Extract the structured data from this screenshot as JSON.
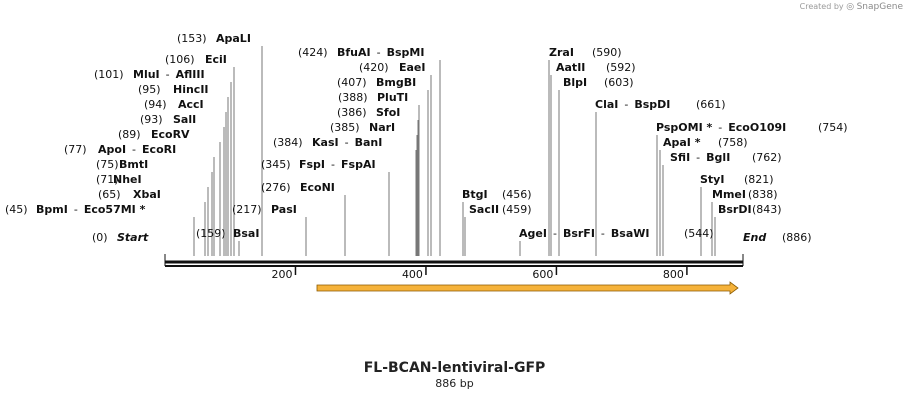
{
  "credit": {
    "prefix": "Created by",
    "brand": "SnapGene"
  },
  "map": {
    "name": "FL-BCAN-lentiviral-GFP",
    "length_label": "886 bp",
    "length": 886,
    "start_label": "Start",
    "end_label": "End",
    "start_pos": "(0)",
    "end_pos": "(886)",
    "ruler_ticks": [
      {
        "value": 200,
        "label": "200"
      },
      {
        "value": 400,
        "label": "400"
      },
      {
        "value": 600,
        "label": "600"
      },
      {
        "value": 800,
        "label": "800"
      }
    ],
    "feature": {
      "name": "GFP-arrow",
      "start": 233,
      "end": 886,
      "direction": "forward",
      "color": "#f5b23a"
    },
    "enzymes": [
      {
        "pos": "(45)",
        "name": "BpmI",
        "name2": "Eco57MI *",
        "site": 45
      },
      {
        "pos": "(65)",
        "name": "XbaI",
        "site": 65
      },
      {
        "pos": "(71)",
        "name": "NheI",
        "site": 71
      },
      {
        "pos": "(75)",
        "name": "BmtI",
        "site": 75
      },
      {
        "pos": "(77)",
        "name": "ApoI",
        "name2": "EcoRI",
        "site": 77
      },
      {
        "pos": "(89)",
        "name": "EcoRV",
        "site": 89
      },
      {
        "pos": "(93)",
        "name": "SalI",
        "site": 93
      },
      {
        "pos": "(94)",
        "name": "AccI",
        "site": 94
      },
      {
        "pos": "(95)",
        "name": "HincII",
        "site": 95
      },
      {
        "pos": "(101)",
        "name": "MluI",
        "name2": "AflIII",
        "site": 101
      },
      {
        "pos": "(106)",
        "name": "EciI",
        "site": 106
      },
      {
        "pos": "(153)",
        "name": "ApaLI",
        "site": 153
      },
      {
        "pos": "(159)",
        "name": "BsaI",
        "site": 159
      },
      {
        "pos": "(217)",
        "name": "PasI",
        "site": 217
      },
      {
        "pos": "(276)",
        "name": "EcoNI",
        "site": 276
      },
      {
        "pos": "(345)",
        "name": "FspI",
        "name2": "FspAI",
        "site": 345
      },
      {
        "pos": "(384)",
        "name": "KasI",
        "name2": "BanI",
        "site": 384
      },
      {
        "pos": "(385)",
        "name": "NarI",
        "site": 385
      },
      {
        "pos": "(386)",
        "name": "SfoI",
        "site": 386
      },
      {
        "pos": "(388)",
        "name": "PluTI",
        "site": 388
      },
      {
        "pos": "(407)",
        "name": "BmgBI",
        "site": 407
      },
      {
        "pos": "(420)",
        "name": "EaeI",
        "site": 420
      },
      {
        "pos": "(424)",
        "name": "BfuAI",
        "name2": "BspMI",
        "site": 424
      },
      {
        "pos": "(456)",
        "name": "BtgI",
        "site": 456
      },
      {
        "pos": "(459)",
        "name": "SacII",
        "site": 459
      },
      {
        "pos": "(544)",
        "name": "AgeI",
        "name2": "BsrFI",
        "name3": "BsaWI",
        "site": 544
      },
      {
        "pos": "(590)",
        "name": "ZraI",
        "site": 590
      },
      {
        "pos": "(592)",
        "name": "AatII",
        "site": 592
      },
      {
        "pos": "(603)",
        "name": "BlpI",
        "site": 603
      },
      {
        "pos": "(661)",
        "name": "ClaI",
        "name2": "BspDI",
        "site": 661
      },
      {
        "pos": "(754)",
        "name": "PspOMI *",
        "name2": "EcoO109I",
        "site": 754
      },
      {
        "pos": "(758)",
        "name": "ApaI *",
        "site": 758
      },
      {
        "pos": "(762)",
        "name": "SfiI",
        "name2": "BglI",
        "site": 762
      },
      {
        "pos": "(821)",
        "name": "StyI",
        "site": 821
      },
      {
        "pos": "(838)",
        "name": "MmeI",
        "site": 838
      },
      {
        "pos": "(843)",
        "name": "BsrDI",
        "site": 843
      }
    ]
  }
}
